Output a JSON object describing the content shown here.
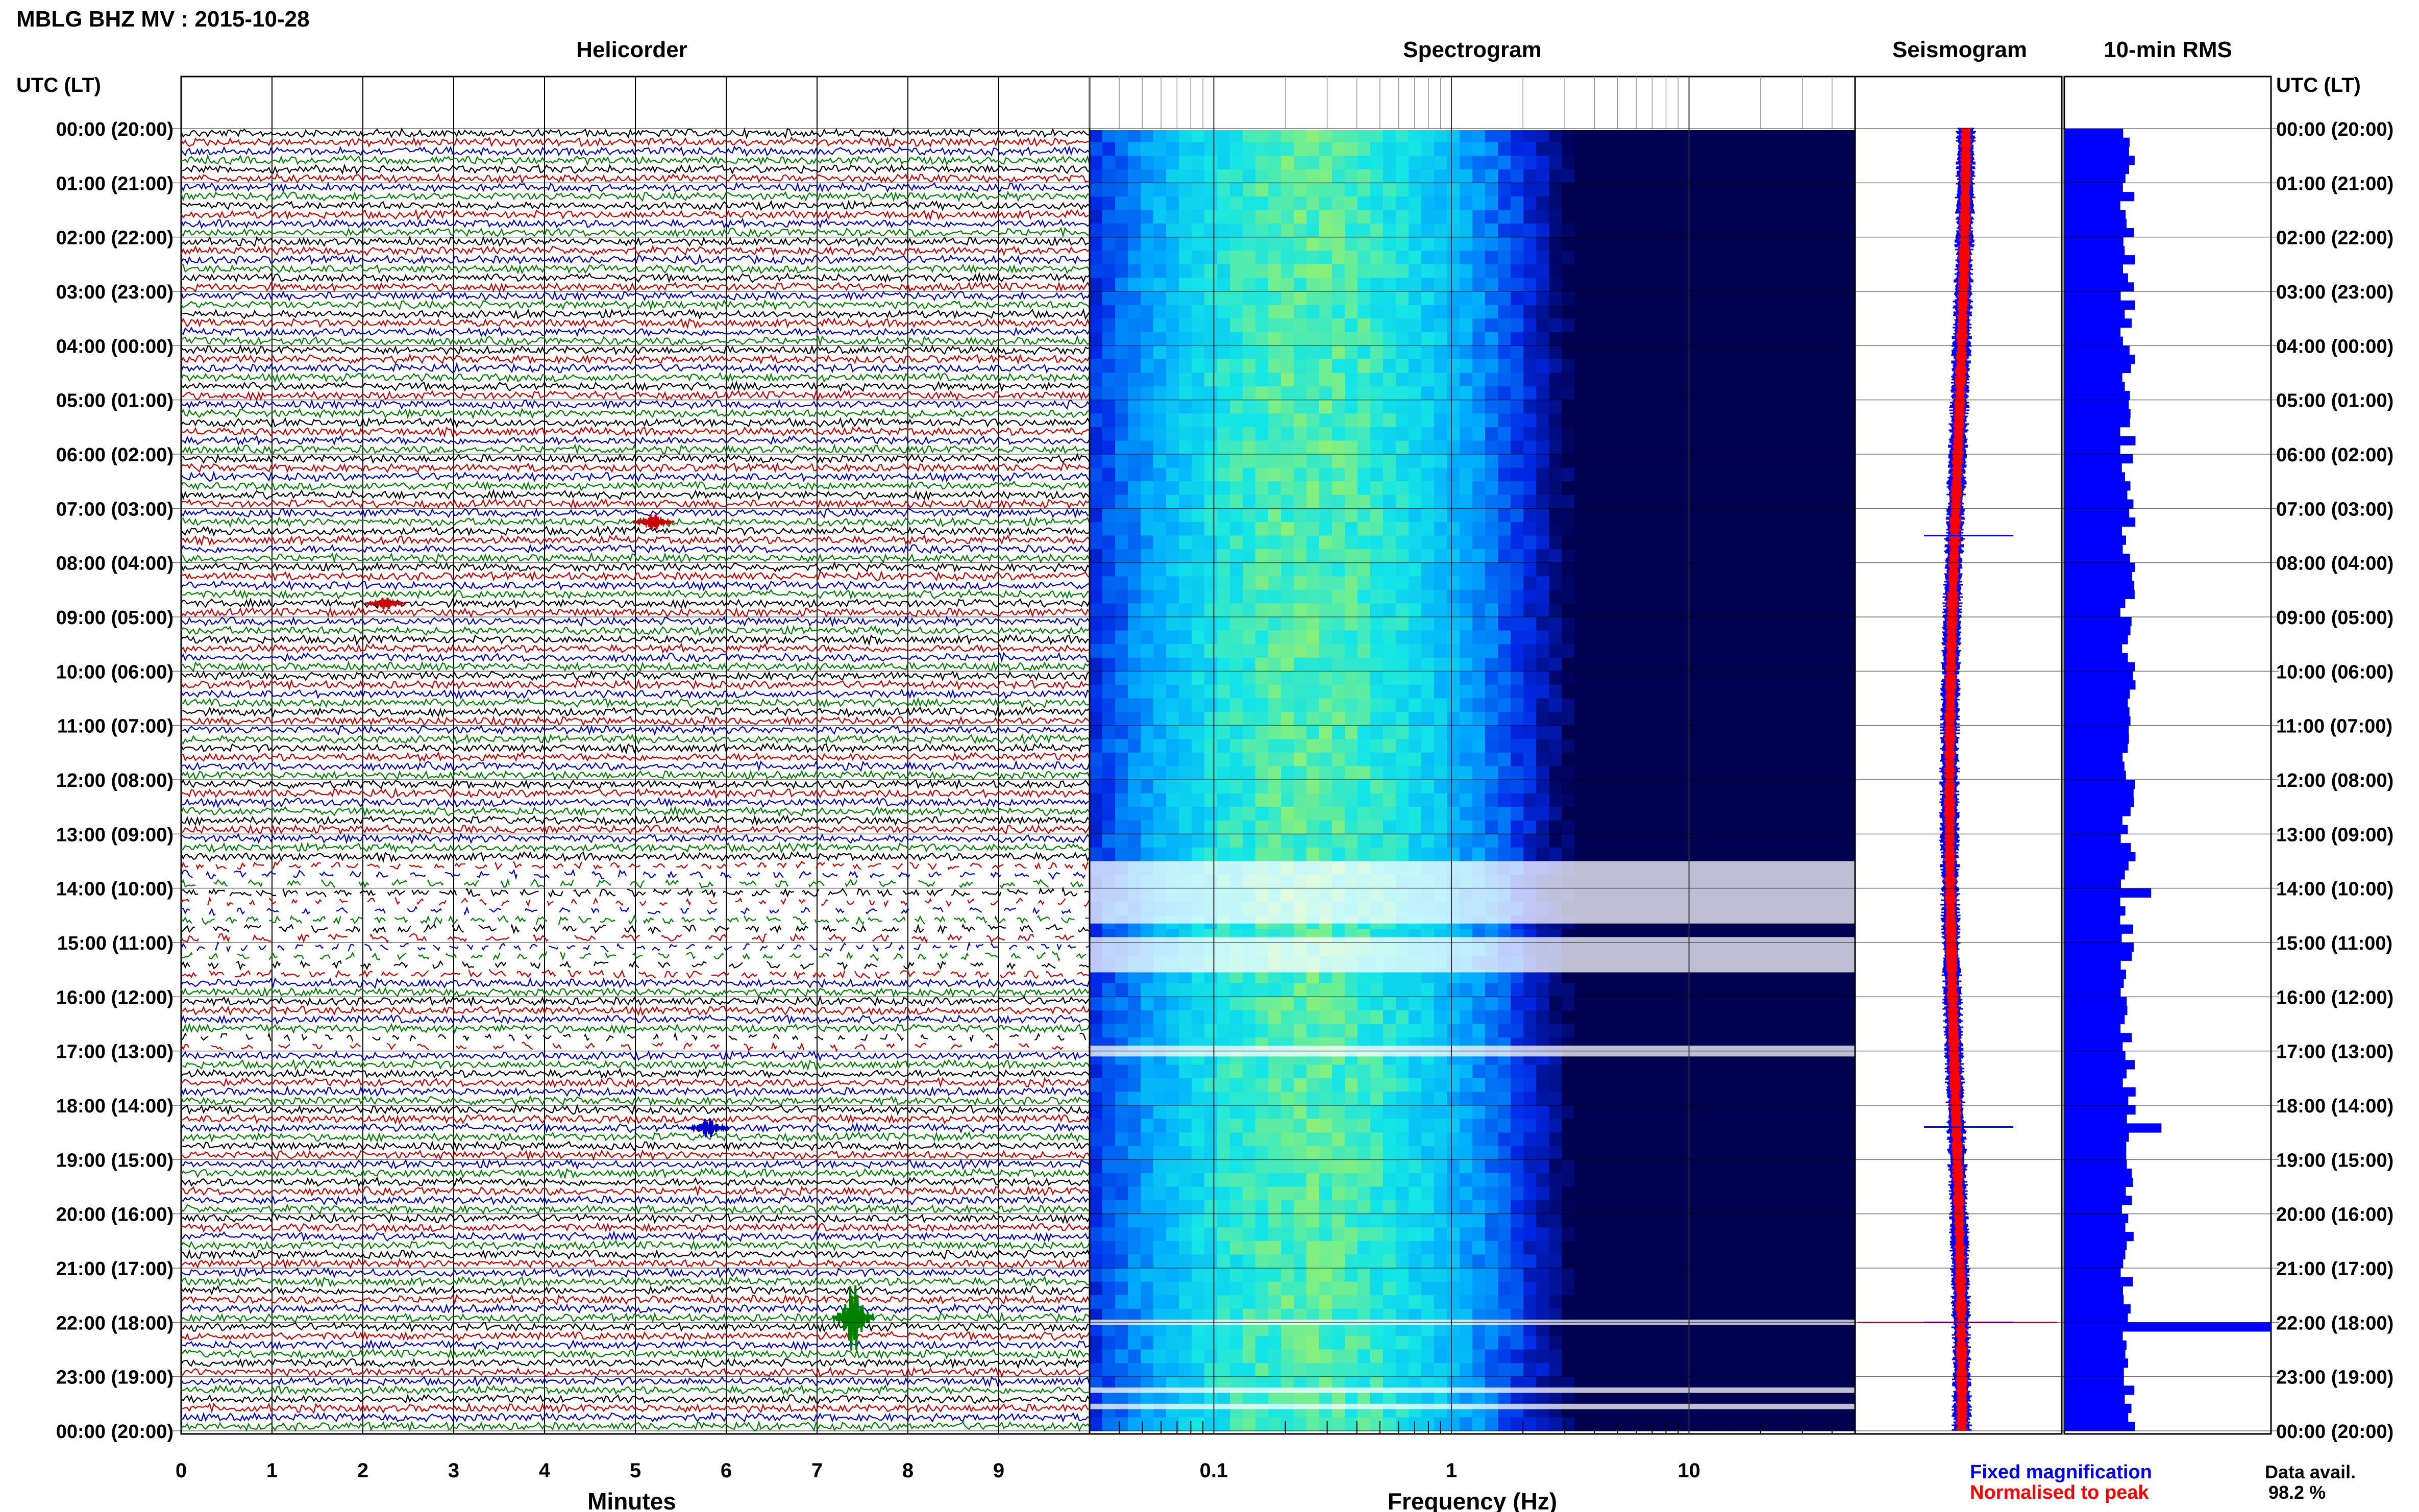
{
  "header": {
    "station_title": "MBLG BHZ MV : 2015-10-28",
    "utc_lt_label": "UTC (LT)",
    "utc_lt_label_right": "UTC (LT)"
  },
  "panels": {
    "helicorder_title": "Helicorder",
    "spectrogram_title": "Spectrogram",
    "seismogram_title": "Seismogram",
    "rms_title": "10-min RMS"
  },
  "footer": {
    "fixed_magnification": "Fixed magnification",
    "normalised_to_peak": "Normalised to peak",
    "data_avail_label": "Data avail.",
    "data_avail_value": "98.2 %"
  },
  "colors": {
    "trace_colors": [
      "#000000",
      "#cc0000",
      "#0000cc",
      "#008000"
    ],
    "fixed_magnification": "#0000ff",
    "normalised_to_peak": "#ff0000",
    "rms_bar": "#0000ff",
    "spectrogram_low": "#00004a",
    "spectrogram_high": "#ffff00"
  },
  "chart_data": [
    {
      "type": "line",
      "title": "Helicorder",
      "xlabel": "Minutes",
      "ylabel": "UTC (LT)",
      "x_ticks": [
        "0",
        "1",
        "2",
        "3",
        "4",
        "5",
        "6",
        "7",
        "8",
        "9"
      ],
      "xlim": [
        0,
        10
      ],
      "y_ticks": [
        "00:00 (20:00)",
        "01:00 (21:00)",
        "02:00 (22:00)",
        "03:00 (23:00)",
        "04:00 (00:00)",
        "05:00 (01:00)",
        "06:00 (02:00)",
        "07:00 (03:00)",
        "08:00 (04:00)",
        "09:00 (05:00)",
        "10:00 (06:00)",
        "11:00 (07:00)",
        "12:00 (08:00)",
        "13:00 (09:00)",
        "14:00 (10:00)",
        "15:00 (11:00)",
        "16:00 (12:00)",
        "17:00 (13:00)",
        "18:00 (14:00)",
        "19:00 (15:00)",
        "20:00 (16:00)",
        "21:00 (17:00)",
        "22:00 (18:00)",
        "23:00 (19:00)",
        "00:00 (20:00)"
      ],
      "rows": 144,
      "row_minutes": 10,
      "events": [
        {
          "row": 43,
          "minute": 5.2,
          "amplitude": 0.8,
          "color": "#cc0000"
        },
        {
          "row": 52,
          "minute": 2.25,
          "amplitude": 0.6,
          "color": "#cc0000"
        },
        {
          "row": 110,
          "minute": 5.8,
          "amplitude": 1.0,
          "color": "#0000cc"
        },
        {
          "row": 131,
          "minute": 7.4,
          "amplitude": 3.5,
          "color": "#008000"
        }
      ],
      "gaps": [
        {
          "row_start": 81,
          "row_end": 93
        },
        {
          "row_start": 100,
          "row_end": 101
        }
      ]
    },
    {
      "type": "heatmap",
      "title": "Spectrogram",
      "xlabel": "Frequency (Hz)",
      "x_scale": "log",
      "xlim": [
        0.03,
        50
      ],
      "x_ticks": [
        {
          "value": 0.1,
          "label": "0.1"
        },
        {
          "value": 1,
          "label": "1"
        },
        {
          "value": 10,
          "label": "10"
        }
      ],
      "peak_frequency_hz": 0.25,
      "gap_hours": [
        [
          13.5,
          14.65
        ],
        [
          14.9,
          15.55
        ],
        [
          16.9,
          17.1
        ],
        [
          21.95,
          22.05
        ],
        [
          23.2,
          23.3
        ],
        [
          23.5,
          23.6
        ]
      ]
    },
    {
      "type": "line",
      "title": "Seismogram",
      "series": [
        {
          "name": "Fixed magnification",
          "color": "#0000ff"
        },
        {
          "name": "Normalised to peak",
          "color": "#ff0000"
        }
      ],
      "events_hours": [
        7.5,
        18.4,
        22.0
      ]
    },
    {
      "type": "bar",
      "title": "10-min RMS",
      "orientation": "horizontal",
      "bins": 144,
      "baseline_relative": 0.3,
      "peaks": [
        {
          "hour": 14.1,
          "relative": 0.42
        },
        {
          "hour": 18.4,
          "relative": 0.47
        },
        {
          "hour": 22.0,
          "relative": 1.0
        }
      ],
      "data_availability_percent": 98.2
    }
  ]
}
